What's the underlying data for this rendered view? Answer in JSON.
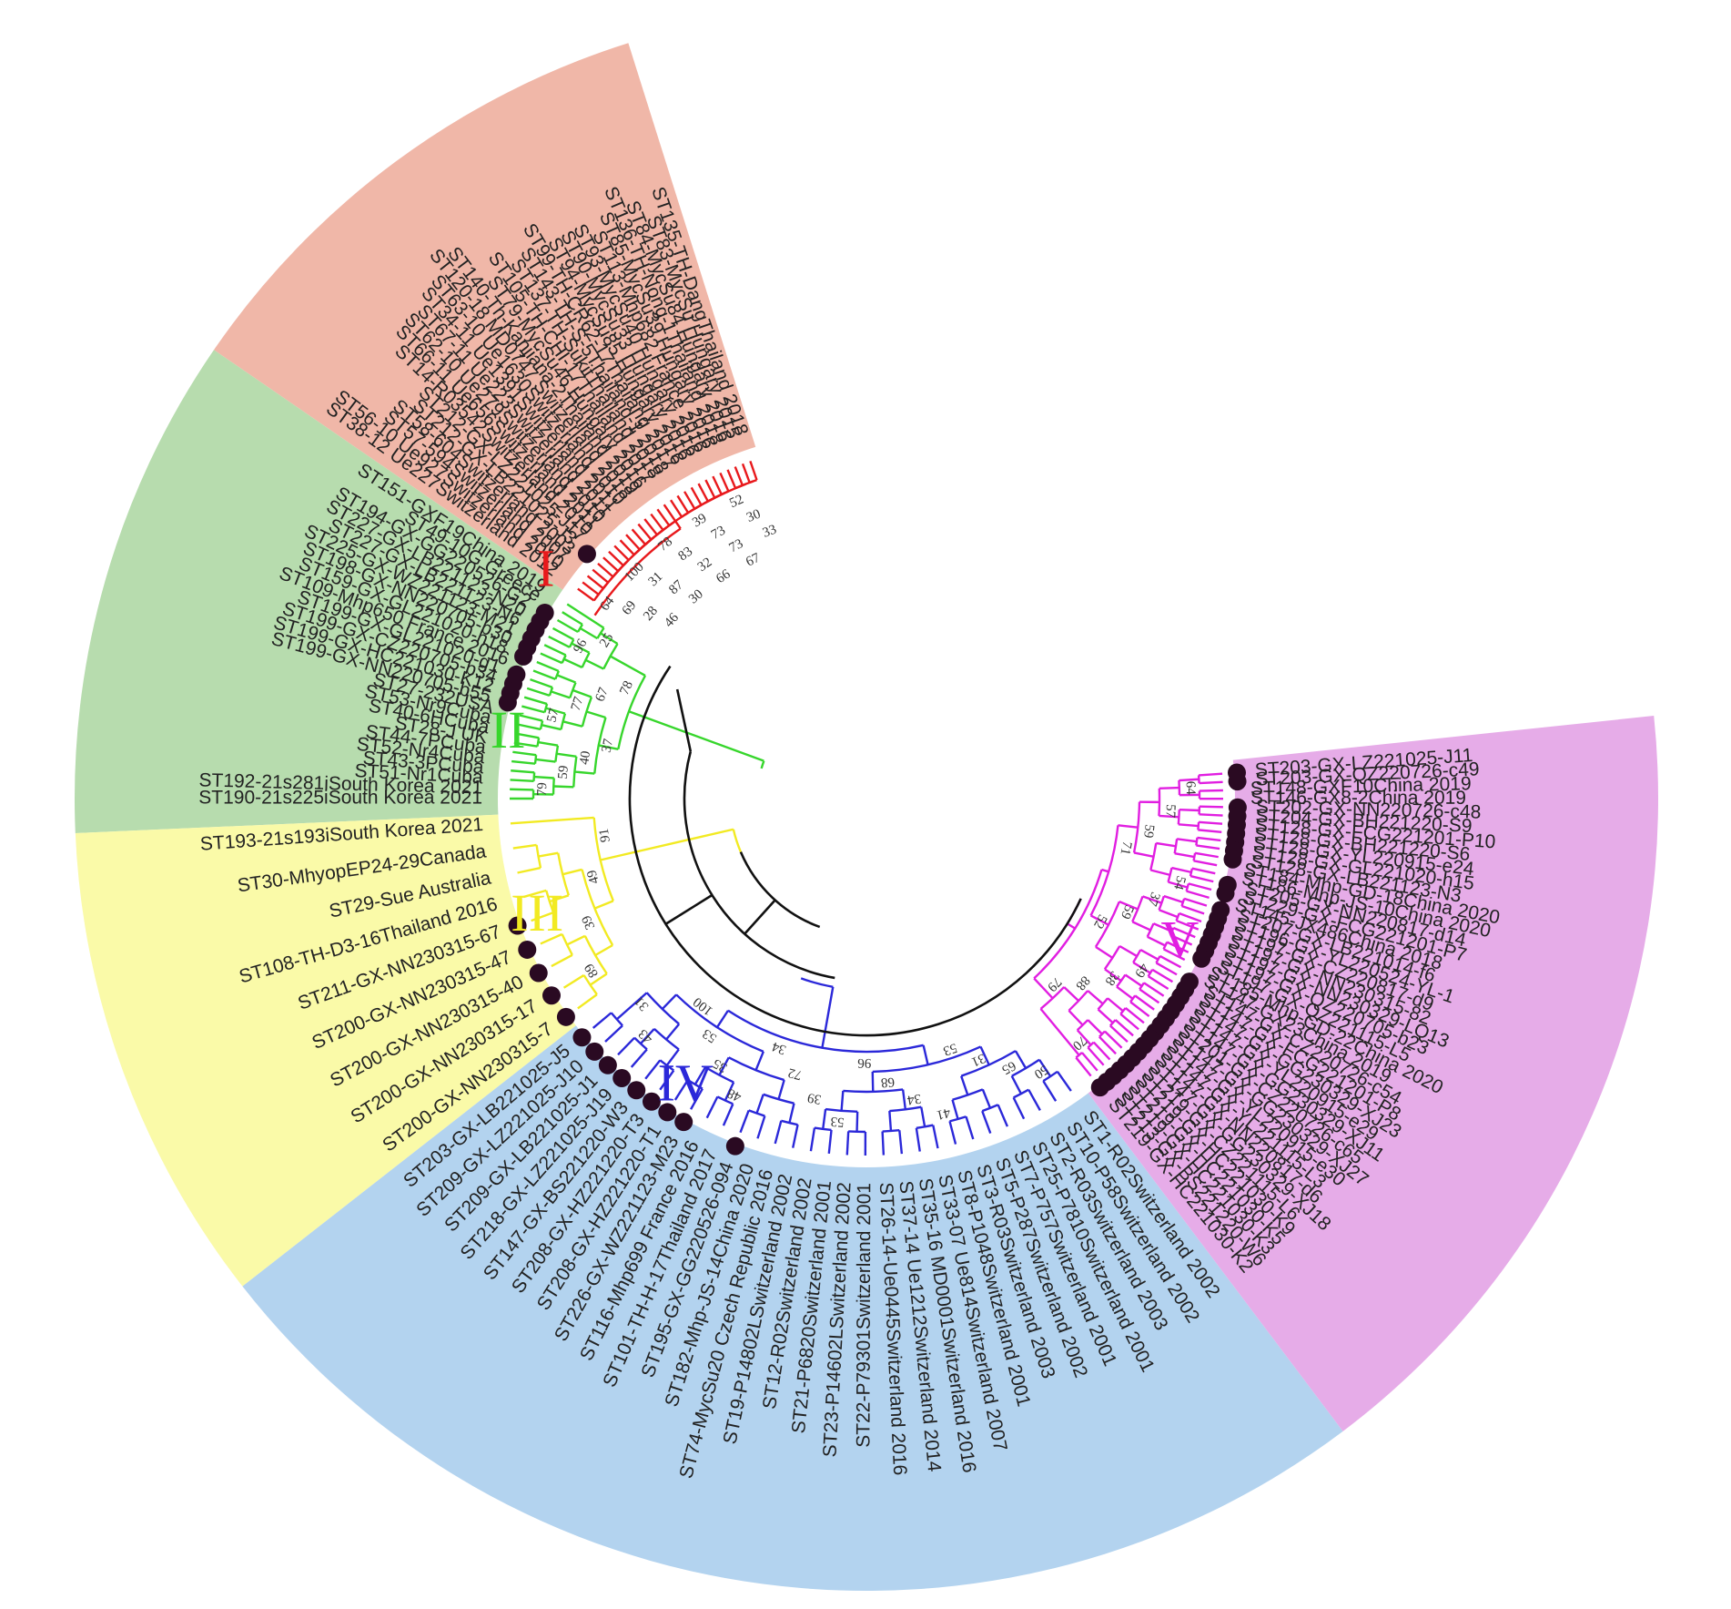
{
  "tree": {
    "clades": [
      {
        "numeral": "I",
        "color": "#e8191c",
        "sector_color": "#f0b7a8",
        "labels": [
          "ST38-12 Ue227Switzerland 2012",
          "ST56-10 Ue927Switzerland 2010",
          "ST57-594Switzerland 2007",
          "ST58-604Switzerland 2003",
          "ST212-GX-LB221025-J3",
          "ST212-GX-LZ221025-J17",
          "ST14-R03542Switzerland 2010",
          "ST66-11 Ue656Switzerland 2011",
          "ST62-10 Ue279Switzerland 2010",
          "ST67-11 Ue223Switzerland 2011",
          "ST34-11 Ue1391Switzerland 2011",
          "ST63-10 Ue1630Switzerland 2010",
          "ST120-18 MD0747 Switzerland 2018",
          "ST140-Th-Kanjiana-2Thailand 2019",
          "ST79-MycSu46 Hungary 2016",
          "ST105-TH-CHI-17Thailand 2017",
          "ST137-TH-SukitThailand 2018",
          "ST143-TH-S-5Thailand-1 2018",
          "ST99-TH-CR62-17Thailang 2017",
          "ST94-MycSu85 Hungary 2016",
          "ST90-MycSu33 Hungary 2016",
          "ST93-MycSu40 Hungary 2016",
          "ST113-Mhp682 France 2016",
          "ST85-MycSu39 Hungary 2016",
          "ST136-TH-Nong-1Thailand 2018",
          "ST84-MycSu84 Hungary 2016",
          "ST83-MycSu Hungary 2015",
          "ST135-TH-DangThailand 2018"
        ],
        "marked": [
          "ST212-GX-LB221025-J3"
        ],
        "bootstrap": [
          "64",
          "69",
          "28",
          "46",
          "100",
          "31",
          "87",
          "30",
          "78",
          "83",
          "32",
          "66",
          "39",
          "73",
          "73",
          "67",
          "52",
          "30",
          "33"
        ]
      },
      {
        "numeral": "II",
        "color": "#37d62c",
        "sector_color": "#b7dcae",
        "labels": [
          "ST190-21s225iSouth Korea 2021",
          "ST192-21s281iSouth Korea 2021",
          "ST51-Nr1Cuba",
          "ST43-3PCuba",
          "ST52-Nr4Cuba",
          "ST44-7PCuba",
          "ST28-J UK",
          "ST40-6HCuba",
          "ST53-Nr9Cuba",
          "ST27-232USA",
          "ST199-GX-NN220705-b55",
          "ST199-GX-HC221030-K12",
          "ST199-GX-CZ220705-b34",
          "ST199-GX-GL221020-g1",
          "ST109-Mhp650 France 2016",
          "ST159-GX-GL221020-h18",
          "ST198-GX-NN220705-b30",
          "ST225-GX-WZ221123-M21",
          "ST227-GX-LB221123-N6",
          "ST227-GX-LB221123-N20",
          "ST194-GX-GG220526-G2",
          "ST49-10G Greece",
          "ST151-GXF19China 2019"
        ],
        "marked": [
          "ST199-GX-NN220705-b55",
          "ST199-GX-HC221030-K12",
          "ST199-GX-CZ220705-b34",
          "ST199-GX-GL221020-g1",
          "ST159-GX-GL221020-h18",
          "ST198-GX-NN220705-b30",
          "ST225-GX-WZ221123-M21",
          "ST227-GX-LB221123-N6",
          "ST227-GX-LB221123-N20",
          "ST194-GX-GG220526-G2"
        ],
        "bootstrap": [
          "79",
          "59",
          "40",
          "37",
          "57",
          "77",
          "67",
          "78",
          "96",
          "25"
        ]
      },
      {
        "numeral": "III",
        "color": "#f2ea22",
        "sector_color": "#fafaa8",
        "labels": [
          "ST200-GX-NN230315-7",
          "ST200-GX-NN230315-17",
          "ST200-GX-NN230315-40",
          "ST200-GX-NN230315-47",
          "ST211-GX-NN230315-67",
          "ST108-TH-D3-16Thailand 2016",
          "ST29-Sue Australia",
          "ST30-MhyopEP24-29Canada",
          "ST193-21s193iSouth Korea 2021"
        ],
        "marked": [
          "ST200-GX-NN230315-7",
          "ST200-GX-NN230315-17",
          "ST200-GX-NN230315-40",
          "ST200-GX-NN230315-47",
          "ST211-GX-NN230315-67"
        ],
        "bootstrap": [
          "89",
          "39",
          "49",
          "91"
        ]
      },
      {
        "numeral": "IV",
        "color": "#2b28d9",
        "sector_color": "#b3d3ef",
        "labels": [
          "ST1-R02Switzerland 2002",
          "ST10-P58Switzerland 2002",
          "ST2-R03Switzerland 2003",
          "ST25-P7810Switzerland 2001",
          "ST7-P757Switzerland 2001",
          "ST5-P287Switzerland 2002",
          "ST3-R03Switzerland 2003",
          "ST8-P1048Switzerland 2001",
          "ST33-07 Ue814Switzerland 2007",
          "ST35-16 MD0001Switzerland 2016",
          "ST37-14 Ue1212Switzerland 2014",
          "ST26-14-Ue0445Switzerland 2016",
          "ST22-P79301Switzerland 2001",
          "ST23-P14602LSwitzerland 2002",
          "ST21-P6820Switzerland 2001",
          "ST12-R02Switzerland 2002",
          "ST19-P14802LSwitzerland 2002",
          "ST74-MycSu20 Czech Republic 2016",
          "ST182-Mhp-JS-14China 2020",
          "ST195-GX-GG220526-094",
          "ST101-TH-H-17Thailand 2017",
          "ST116-Mhp699 France 2016",
          "ST226-GX-WZ221123-M23",
          "ST208-GX-HZ221220-T1",
          "ST208-GX-HZ221220-T3",
          "ST147-GX-BS221220-W3",
          "ST218-GX-LZ221025-J19",
          "ST209-GX-LB221025-J1",
          "ST209-GX-LZ221025-J10",
          "ST203-GX-LB221025-J5"
        ],
        "marked": [
          "ST195-GX-GG220526-094",
          "ST226-GX-WZ221123-M23",
          "ST208-GX-HZ221220-T1",
          "ST208-GX-HZ221220-T3",
          "ST147-GX-BS221220-W3",
          "ST218-GX-LZ221025-J19",
          "ST209-GX-LB221025-J1",
          "ST209-GX-LZ221025-J10",
          "ST203-GX-LB221025-J5"
        ],
        "bootstrap": [
          "50",
          "65",
          "31",
          "53",
          "41",
          "34",
          "68",
          "96",
          "53",
          "39",
          "72",
          "34",
          "48",
          "35",
          "53",
          "100",
          "43",
          "31"
        ]
      },
      {
        "numeral": "V",
        "color": "#e11ee1",
        "sector_color": "#e6ace8",
        "labels": [
          "ST203-GX-LZ221025-J11",
          "ST203-GX-QZ220726-c49",
          "ST148-GXF10China 2019",
          "ST146-GX8-2China 2019",
          "ST202-GX-NN220726-c48",
          "ST204-GX-BH221220-S9",
          "ST128-GX-FCG221201-P10",
          "ST128-GX-BH221220-S6",
          "ST128-GX-YL220915-e24",
          "ST128-GX-GL221020-h15",
          "ST128-GX-LB221123-N3",
          "ST184-Mhp-GD-18China 2020",
          "ST186-Mhp-JS-10China 2020",
          "ST205-GX-NN220817-d14",
          "ST229-GX-FCG221201-P7",
          "ST145-JX486China 2018",
          "ST207-GX-LB221014-f6",
          "ST196-GX-YL220524-YL-1",
          "ST197-GX-CZ220817-d9",
          "ST197-GX-NN230315-82",
          "ST197-GX-NN230329-LQ13",
          "ST197-GX-QZ220705-b23",
          "ST197-GX-QZ221115-L5",
          "ST185-Mhp-GD-22China 2020",
          "ST147-GX23China 2019",
          "ST147-GX-CZ220726-c54",
          "ST147-GX-FCG221201-P8",
          "ST147-GX-GG230329-XJ23",
          "ST147-GX-YL220915-e29",
          "ST147-GX-GG230329-XJ11",
          "ST201-GX-CZ220726-c65",
          "ST147-GX-GG230329-XJ27",
          "ST147-GX-YL220915-e30",
          "ST147-GX-YL221115-L3",
          "ST147-GX-NN220817-d6",
          "ST147-GX-GG230329-XJ18",
          "ST219-GX-CZ221115-L6",
          "ST219-GX-HC221030-K9",
          "ST219-GX-HC221030-K5",
          "ST219-GX-HC221030-K3",
          "ST213-GX-BS221220-W6",
          "ST219-GX-HC221030-K2"
        ],
        "marked": [
          "ST203-GX-LZ221025-J11",
          "ST203-GX-QZ220726-c49",
          "ST202-GX-NN220726-c48",
          "ST204-GX-BH221220-S9",
          "ST128-GX-FCG221201-P10",
          "ST128-GX-BH221220-S6",
          "ST128-GX-YL220915-e24",
          "ST128-GX-GL221020-h15",
          "ST128-GX-LB221123-N3",
          "ST205-GX-NN220817-d14",
          "ST229-GX-FCG221201-P7",
          "ST207-GX-LB221014-f6",
          "ST196-GX-YL220524-YL-1",
          "ST197-GX-CZ220817-d9",
          "ST197-GX-NN230315-82",
          "ST197-GX-NN230329-LQ13",
          "ST197-GX-QZ220705-b23",
          "ST197-GX-QZ221115-L5",
          "ST147-GX-CZ220726-c54",
          "ST147-GX-FCG221201-P8",
          "ST147-GX-GG230329-XJ23",
          "ST147-GX-YL220915-e29",
          "ST147-GX-GG230329-XJ11",
          "ST201-GX-CZ220726-c65",
          "ST147-GX-GG230329-XJ27",
          "ST147-GX-YL220915-e30",
          "ST147-GX-YL221115-L3",
          "ST147-GX-NN220817-d6",
          "ST147-GX-GG230329-XJ18",
          "ST219-GX-CZ221115-L6",
          "ST219-GX-HC221030-K9",
          "ST219-GX-HC221030-K5",
          "ST219-GX-HC221030-K3",
          "ST213-GX-BS221220-W6",
          "ST219-GX-HC221030-K2"
        ],
        "bootstrap": [
          "64",
          "57",
          "59",
          "71",
          "54",
          "37",
          "59",
          "52",
          "49",
          "38",
          "88",
          "79",
          "70"
        ]
      }
    ],
    "backbone_color": "#111111",
    "marker_color": "#2a0a22"
  }
}
